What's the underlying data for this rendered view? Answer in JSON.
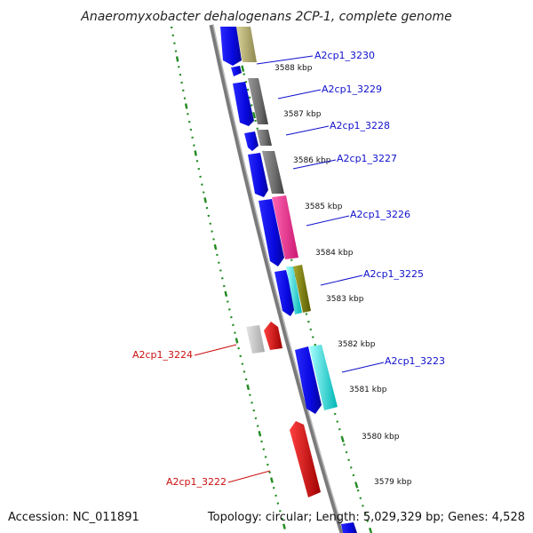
{
  "title": "Anaeromyxobacter dehalogenans 2CP-1, complete genome",
  "footer": {
    "accession": "Accession: NC_011891",
    "topology": "Topology: circular; Length: 5,029,329 bp; Genes: 4,528"
  },
  "kbp_labels": [
    "3588 kbp",
    "3587 kbp",
    "3586 kbp",
    "3585 kbp",
    "3584 kbp",
    "3583 kbp",
    "3582 kbp",
    "3581 kbp",
    "3580 kbp",
    "3579 kbp"
  ],
  "forward_genes": [
    "A2cp1_3230",
    "A2cp1_3229",
    "A2cp1_3228",
    "A2cp1_3227",
    "A2cp1_3226",
    "A2cp1_3225",
    "A2cp1_3223"
  ],
  "reverse_genes": [
    "A2cp1_3224",
    "A2cp1_3222"
  ],
  "colors": {
    "forward_label": "#1010cc",
    "reverse_label": "#cc1010",
    "gene_blue": "#0a0ae6",
    "gene_gray": "#6e6e6e",
    "gene_light_gray": "#c8c8c8",
    "gene_khaki": "#bdb76b",
    "gene_pink": "#ff3399",
    "gene_cyan": "#00e0e0",
    "gene_olive": "#808000",
    "gene_red": "#ee0000",
    "tick_green": "#228b22"
  }
}
